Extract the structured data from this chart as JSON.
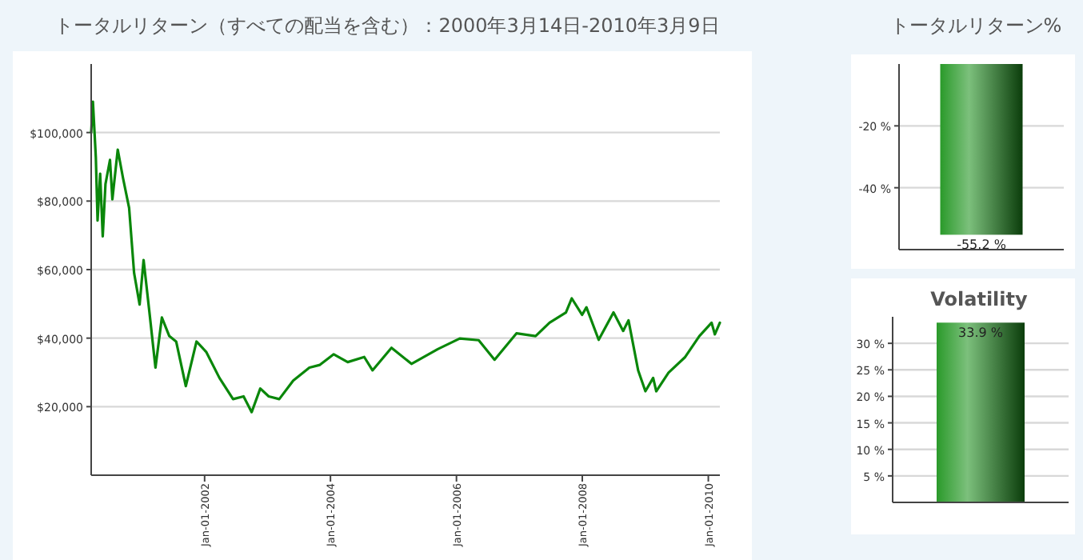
{
  "chart_data": [
    {
      "type": "line",
      "title": "トータルリターン（すべての配当を含む）：2000年3月14日-2010年3月9日",
      "xlim": [
        "2000-03-14",
        "2010-03-09"
      ],
      "ylim": [
        0,
        120000
      ],
      "yticks": [
        {
          "value": 20000,
          "label": "$20,000"
        },
        {
          "value": 40000,
          "label": "$40,000"
        },
        {
          "value": 60000,
          "label": "$60,000"
        },
        {
          "value": 80000,
          "label": "$80,000"
        },
        {
          "value": 100000,
          "label": "$100,000"
        }
      ],
      "xticks": [
        {
          "value": "2002-01-01",
          "label": "Jan-01-2002"
        },
        {
          "value": "2004-01-01",
          "label": "Jan-01-2004"
        },
        {
          "value": "2006-01-01",
          "label": "Jan-01-2006"
        },
        {
          "value": "2008-01-01",
          "label": "Jan-01-2008"
        },
        {
          "value": "2010-01-01",
          "label": "Jan-01-2010"
        }
      ],
      "grid": "y",
      "series": [
        {
          "color": "#0a870a",
          "x": [
            "2000-03-14",
            "2000-03-24",
            "2000-04-10",
            "2000-04-20",
            "2000-05-05",
            "2000-05-20",
            "2000-06-05",
            "2000-07-01",
            "2000-07-15",
            "2000-08-15",
            "2000-09-15",
            "2000-10-20",
            "2000-11-18",
            "2000-12-20",
            "2001-01-12",
            "2001-02-15",
            "2001-03-22",
            "2001-04-28",
            "2001-06-10",
            "2001-07-20",
            "2001-09-14",
            "2001-11-15",
            "2002-01-10",
            "2002-03-28",
            "2002-06-15",
            "2002-08-15",
            "2002-10-01",
            "2002-11-20",
            "2003-01-08",
            "2003-03-10",
            "2003-05-30",
            "2003-09-01",
            "2003-11-01",
            "2004-01-20",
            "2004-04-10",
            "2004-07-15",
            "2004-09-01",
            "2004-12-20",
            "2005-04-15",
            "2005-09-15",
            "2006-01-20",
            "2006-05-10",
            "2006-08-10",
            "2006-12-15",
            "2007-04-05",
            "2007-06-25",
            "2007-09-28",
            "2007-11-01",
            "2007-12-31",
            "2008-01-25",
            "2008-04-05",
            "2008-06-30",
            "2008-08-25",
            "2008-09-25",
            "2008-11-20",
            "2009-01-01",
            "2009-02-15",
            "2009-03-05",
            "2009-05-15",
            "2009-08-20",
            "2009-11-10",
            "2010-01-20",
            "2010-02-08",
            "2010-03-09"
          ],
          "values": [
            100000,
            109000,
            92700,
            74300,
            88000,
            69700,
            85000,
            92000,
            80500,
            95000,
            86600,
            78000,
            59000,
            49800,
            62800,
            47500,
            31400,
            46000,
            40600,
            39000,
            26000,
            39000,
            36000,
            28400,
            22200,
            23000,
            18400,
            25300,
            23000,
            22200,
            27600,
            31400,
            32200,
            35300,
            33000,
            34500,
            30600,
            37200,
            32500,
            36800,
            39900,
            39400,
            33700,
            41400,
            40600,
            44500,
            47500,
            51600,
            46800,
            49000,
            39500,
            47500,
            42100,
            45200,
            30600,
            24500,
            28400,
            24500,
            29900,
            34500,
            40600,
            44500,
            41100,
            44500
          ]
        }
      ]
    },
    {
      "type": "bar",
      "title": "トータルリターン%",
      "categories": [
        null
      ],
      "values": [
        -55.2
      ],
      "value_labels": [
        "-55.2 %"
      ],
      "color": "#2a9a2a",
      "ylim": [
        -60,
        0
      ],
      "yticks": [
        {
          "value": -20,
          "label": "-20 %"
        },
        {
          "value": -40,
          "label": "-40 %"
        }
      ],
      "grid": "y"
    },
    {
      "type": "bar",
      "title": "Volatility",
      "categories": [
        null
      ],
      "values": [
        33.9
      ],
      "value_labels": [
        "33.9 %"
      ],
      "color": "#2a9a2a",
      "ylim": [
        0,
        35
      ],
      "yticks": [
        {
          "value": 5,
          "label": "5 %"
        },
        {
          "value": 10,
          "label": "10 %"
        },
        {
          "value": 15,
          "label": "15 %"
        },
        {
          "value": 20,
          "label": "20 %"
        },
        {
          "value": 25,
          "label": "25 %"
        },
        {
          "value": 30,
          "label": "30 %"
        }
      ],
      "grid": "y"
    }
  ]
}
